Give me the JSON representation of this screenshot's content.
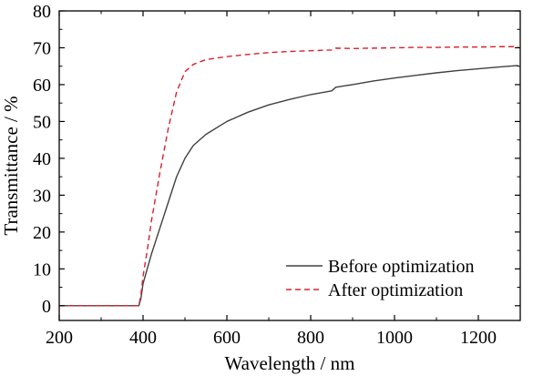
{
  "chart_data": {
    "type": "line",
    "title": "",
    "xlabel": "Wavelength / nm",
    "ylabel": "Transmittance / %",
    "xlim": [
      200,
      1300
    ],
    "ylim": [
      -4,
      80
    ],
    "xticks": [
      200,
      400,
      600,
      800,
      1000,
      1200
    ],
    "yticks": [
      0,
      10,
      20,
      30,
      40,
      50,
      60,
      70,
      80
    ],
    "xtick_labels": [
      "200",
      "400",
      "600",
      "800",
      "1000",
      "1200"
    ],
    "ytick_labels": [
      "0",
      "10",
      "20",
      "30",
      "40",
      "50",
      "60",
      "70",
      "80"
    ],
    "grid": false,
    "legend_position": "bottom-right",
    "series": [
      {
        "name": "Before optimization",
        "color": "#404040",
        "dash": "solid",
        "x": [
          200,
          300,
          390,
          395,
          400,
          410,
          420,
          440,
          460,
          480,
          500,
          520,
          550,
          600,
          650,
          700,
          750,
          800,
          850,
          860,
          900,
          950,
          1000,
          1050,
          1100,
          1150,
          1200,
          1250,
          1295
        ],
        "y": [
          0,
          0,
          0,
          2,
          6,
          10,
          14,
          21,
          28,
          35,
          40,
          43.5,
          46.5,
          50,
          52.5,
          54.5,
          56,
          57.3,
          58.3,
          59.3,
          60,
          61,
          61.8,
          62.5,
          63.2,
          63.8,
          64.3,
          64.8,
          65.2
        ]
      },
      {
        "name": "After optimization",
        "color": "#d8202f",
        "dash": "dashed",
        "x": [
          200,
          300,
          390,
          395,
          400,
          410,
          420,
          440,
          460,
          480,
          500,
          520,
          550,
          600,
          650,
          700,
          750,
          800,
          850,
          860,
          900,
          950,
          1000,
          1050,
          1100,
          1150,
          1200,
          1250,
          1295
        ],
        "y": [
          0,
          0,
          0,
          3,
          8,
          15,
          23,
          36,
          48,
          58,
          63.5,
          65.5,
          66.8,
          67.6,
          68.2,
          68.7,
          69,
          69.2,
          69.4,
          69.9,
          69.8,
          69.9,
          70,
          70.1,
          70.1,
          70.2,
          70.2,
          70.3,
          70.3
        ]
      }
    ]
  }
}
